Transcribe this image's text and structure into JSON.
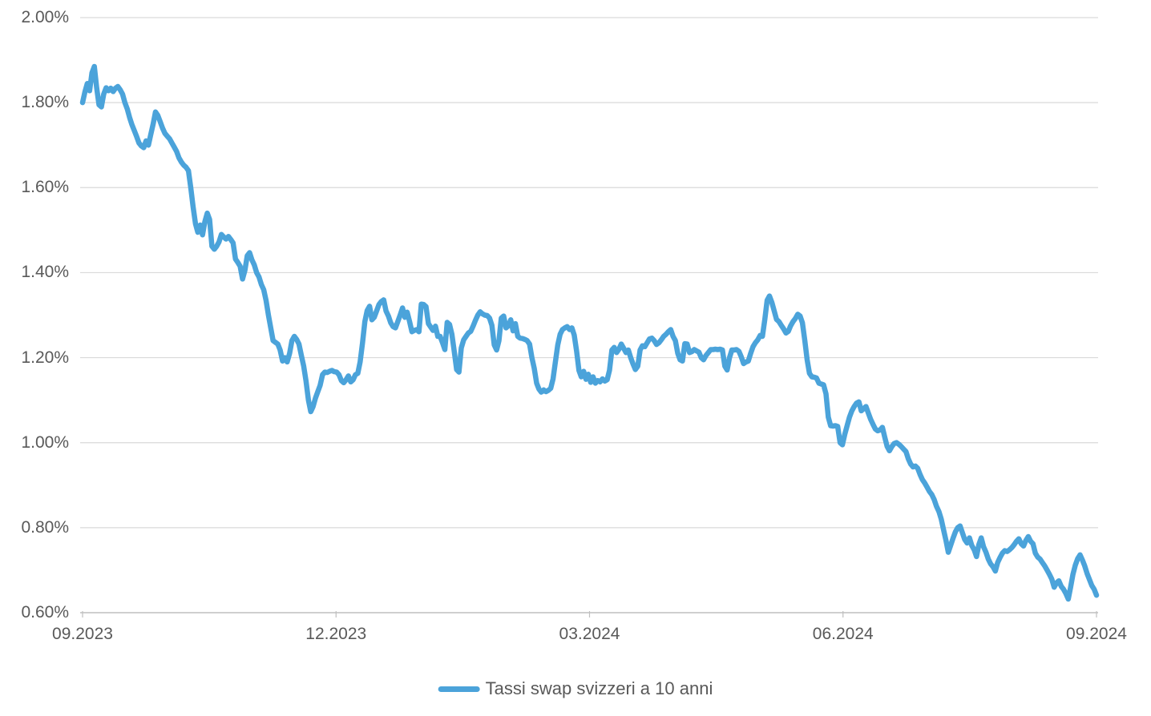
{
  "chart_data": {
    "type": "line",
    "title": "",
    "x_tick_labels": [
      "09.2023",
      "12.2023",
      "03.2024",
      "06.2024",
      "09.2024"
    ],
    "y_tick_labels": [
      "2.00%",
      "1.80%",
      "1.60%",
      "1.40%",
      "1.20%",
      "1.00%",
      "0.80%",
      "0.60%"
    ],
    "y_min": 0.6,
    "y_max": 2.0,
    "y_step": 0.2,
    "y_unit": "%",
    "grid": "horizontal",
    "legend_position": "bottom-center",
    "colors": {
      "line": "#4BA3DA",
      "grid": "#D9D9D9",
      "axis": "#BFBFBF",
      "text": "#595959",
      "background": "#FFFFFF"
    },
    "series": [
      {
        "name": "Tassi swap svizzeri a 10 anni",
        "color": "#4BA3DA",
        "x_start": "09.2023",
        "x_end": "09.2024",
        "unit": "%",
        "values": [
          1.8,
          1.825,
          1.845,
          1.828,
          1.87,
          1.885,
          1.835,
          1.795,
          1.79,
          1.82,
          1.835,
          1.828,
          1.834,
          1.826,
          1.834,
          1.838,
          1.83,
          1.82,
          1.8,
          1.785,
          1.765,
          1.748,
          1.734,
          1.72,
          1.705,
          1.698,
          1.694,
          1.71,
          1.7,
          1.725,
          1.75,
          1.778,
          1.77,
          1.755,
          1.74,
          1.728,
          1.721,
          1.715,
          1.705,
          1.695,
          1.685,
          1.67,
          1.66,
          1.653,
          1.648,
          1.64,
          1.6,
          1.555,
          1.515,
          1.495,
          1.512,
          1.489,
          1.52,
          1.54,
          1.525,
          1.462,
          1.455,
          1.462,
          1.472,
          1.49,
          1.484,
          1.479,
          1.485,
          1.478,
          1.47,
          1.432,
          1.424,
          1.415,
          1.385,
          1.405,
          1.44,
          1.447,
          1.43,
          1.418,
          1.4,
          1.39,
          1.372,
          1.36,
          1.335,
          1.3,
          1.27,
          1.24,
          1.236,
          1.232,
          1.218,
          1.192,
          1.2,
          1.19,
          1.21,
          1.24,
          1.25,
          1.243,
          1.232,
          1.205,
          1.18,
          1.145,
          1.1,
          1.073,
          1.085,
          1.105,
          1.12,
          1.135,
          1.16,
          1.166,
          1.165,
          1.168,
          1.17,
          1.167,
          1.166,
          1.16,
          1.146,
          1.141,
          1.148,
          1.157,
          1.143,
          1.148,
          1.16,
          1.163,
          1.19,
          1.235,
          1.285,
          1.311,
          1.321,
          1.289,
          1.295,
          1.31,
          1.325,
          1.332,
          1.336,
          1.31,
          1.298,
          1.282,
          1.273,
          1.27,
          1.285,
          1.3,
          1.317,
          1.295,
          1.307,
          1.285,
          1.261,
          1.264,
          1.266,
          1.261,
          1.326,
          1.325,
          1.32,
          1.28,
          1.272,
          1.264,
          1.274,
          1.25,
          1.25,
          1.235,
          1.219,
          1.283,
          1.278,
          1.255,
          1.215,
          1.172,
          1.166,
          1.223,
          1.242,
          1.25,
          1.258,
          1.262,
          1.274,
          1.288,
          1.3,
          1.308,
          1.303,
          1.3,
          1.299,
          1.293,
          1.276,
          1.23,
          1.218,
          1.24,
          1.293,
          1.298,
          1.27,
          1.275,
          1.289,
          1.263,
          1.28,
          1.25,
          1.246,
          1.245,
          1.243,
          1.24,
          1.232,
          1.2,
          1.175,
          1.14,
          1.126,
          1.119,
          1.124,
          1.12,
          1.123,
          1.128,
          1.15,
          1.19,
          1.23,
          1.255,
          1.266,
          1.27,
          1.273,
          1.266,
          1.27,
          1.253,
          1.215,
          1.17,
          1.155,
          1.168,
          1.149,
          1.161,
          1.142,
          1.155,
          1.14,
          1.146,
          1.143,
          1.15,
          1.145,
          1.148,
          1.17,
          1.218,
          1.224,
          1.212,
          1.22,
          1.232,
          1.222,
          1.212,
          1.218,
          1.2,
          1.185,
          1.172,
          1.18,
          1.218,
          1.228,
          1.226,
          1.235,
          1.244,
          1.246,
          1.24,
          1.231,
          1.235,
          1.242,
          1.25,
          1.255,
          1.261,
          1.266,
          1.25,
          1.24,
          1.21,
          1.195,
          1.192,
          1.233,
          1.232,
          1.212,
          1.214,
          1.219,
          1.216,
          1.213,
          1.2,
          1.195,
          1.205,
          1.212,
          1.219,
          1.219,
          1.22,
          1.219,
          1.22,
          1.218,
          1.18,
          1.171,
          1.2,
          1.218,
          1.218,
          1.219,
          1.215,
          1.202,
          1.186,
          1.19,
          1.192,
          1.21,
          1.226,
          1.235,
          1.242,
          1.252,
          1.25,
          1.29,
          1.335,
          1.345,
          1.33,
          1.31,
          1.29,
          1.285,
          1.276,
          1.268,
          1.258,
          1.262,
          1.275,
          1.285,
          1.292,
          1.302,
          1.298,
          1.282,
          1.24,
          1.195,
          1.163,
          1.155,
          1.154,
          1.152,
          1.14,
          1.138,
          1.136,
          1.115,
          1.06,
          1.04,
          1.039,
          1.04,
          1.038,
          1.0,
          0.995,
          1.02,
          1.04,
          1.06,
          1.075,
          1.085,
          1.093,
          1.096,
          1.075,
          1.08,
          1.085,
          1.07,
          1.055,
          1.043,
          1.032,
          1.028,
          1.03,
          1.036,
          1.013,
          0.991,
          0.981,
          0.991,
          0.998,
          1.0,
          0.996,
          0.991,
          0.985,
          0.979,
          0.962,
          0.95,
          0.943,
          0.945,
          0.94,
          0.925,
          0.913,
          0.905,
          0.895,
          0.885,
          0.878,
          0.866,
          0.85,
          0.838,
          0.82,
          0.795,
          0.77,
          0.742,
          0.758,
          0.775,
          0.79,
          0.8,
          0.804,
          0.788,
          0.772,
          0.764,
          0.776,
          0.758,
          0.748,
          0.732,
          0.76,
          0.776,
          0.755,
          0.742,
          0.726,
          0.715,
          0.708,
          0.698,
          0.718,
          0.73,
          0.74,
          0.746,
          0.744,
          0.748,
          0.753,
          0.76,
          0.768,
          0.774,
          0.762,
          0.757,
          0.77,
          0.779,
          0.768,
          0.762,
          0.74,
          0.731,
          0.726,
          0.718,
          0.71,
          0.7,
          0.69,
          0.679,
          0.66,
          0.67,
          0.675,
          0.662,
          0.655,
          0.645,
          0.632,
          0.66,
          0.69,
          0.712,
          0.727,
          0.736,
          0.724,
          0.71,
          0.692,
          0.678,
          0.664,
          0.655,
          0.641
        ]
      }
    ]
  }
}
